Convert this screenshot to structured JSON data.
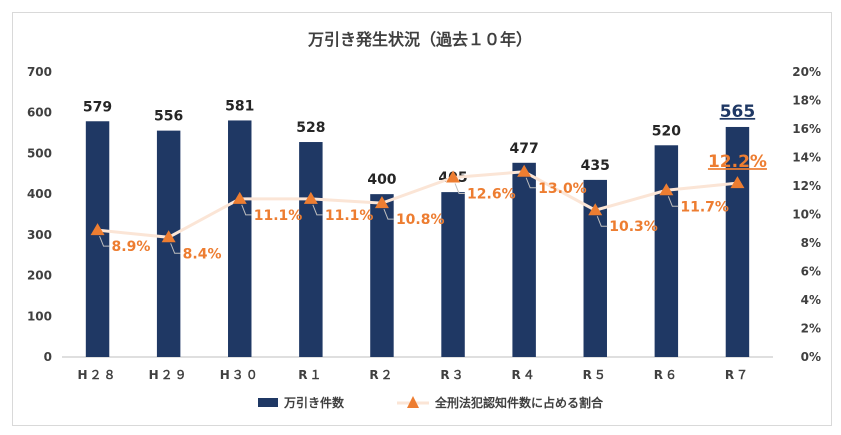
{
  "chart_data": {
    "type": "bar",
    "title": "万引き発生状況（過去１０年）",
    "categories": [
      "H２８",
      "H２９",
      "H３０",
      "R１",
      "R２",
      "R３",
      "R４",
      "R５",
      "R６",
      "R７"
    ],
    "series": [
      {
        "name": "万引き件数",
        "type": "bar",
        "axis": "left",
        "color": "#1f3864",
        "values": [
          579,
          556,
          581,
          528,
          400,
          405,
          477,
          435,
          520,
          565
        ],
        "labels": [
          "579",
          "556",
          "581",
          "528",
          "400",
          "405",
          "477",
          "435",
          "520",
          "565"
        ]
      },
      {
        "name": "全刑法犯認知件数に占める割合",
        "type": "line",
        "axis": "right",
        "color": "#ed7d31",
        "line_color": "#fbe5d6",
        "values": [
          8.9,
          8.4,
          11.1,
          11.1,
          10.8,
          12.6,
          13.0,
          10.3,
          11.7,
          12.2
        ],
        "labels": [
          "8.9%",
          "8.4%",
          "11.1%",
          "11.1%",
          "10.8%",
          "12.6%",
          "13.0%",
          "10.3%",
          "11.7%",
          "12.2%"
        ]
      }
    ],
    "y_left": {
      "ylim": [
        0,
        700
      ],
      "ticks": [
        "0",
        "100",
        "200",
        "300",
        "400",
        "500",
        "600",
        "700"
      ]
    },
    "y_right": {
      "ylim": [
        0,
        20
      ],
      "ticks": [
        "0%",
        "2%",
        "4%",
        "6%",
        "8%",
        "10%",
        "12%",
        "14%",
        "16%",
        "18%",
        "20%"
      ]
    },
    "grid": false,
    "legend": "bottom",
    "highlight_last": true
  }
}
